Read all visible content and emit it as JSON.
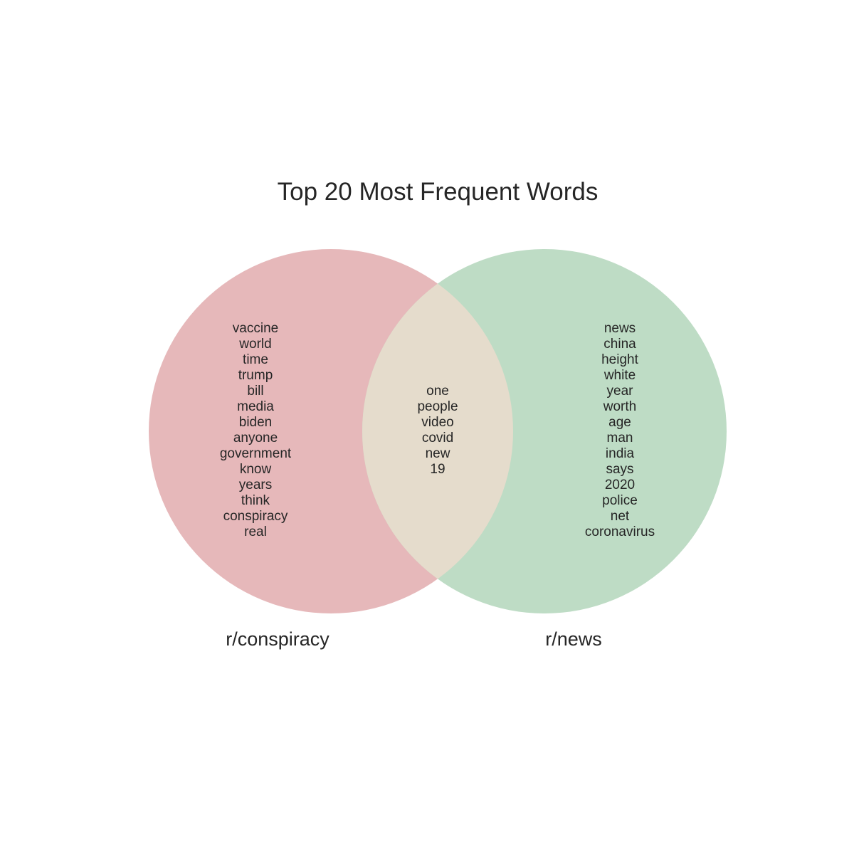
{
  "title": "Top 20 Most Frequent Words",
  "colors": {
    "left_set": "#e6b8ba",
    "right_set": "#bedcc5",
    "overlap": "#e5dccc",
    "text": "#262626",
    "background": "#ffffff"
  },
  "sets": {
    "left": {
      "label": "r/conspiracy",
      "words": [
        "vaccine",
        "world",
        "time",
        "trump",
        "bill",
        "media",
        "biden",
        "anyone",
        "government",
        "know",
        "years",
        "think",
        "conspiracy",
        "real"
      ]
    },
    "right": {
      "label": "r/news",
      "words": [
        "news",
        "china",
        "height",
        "white",
        "year",
        "worth",
        "age",
        "man",
        "india",
        "says",
        "2020",
        "police",
        "net",
        "coronavirus"
      ]
    },
    "intersection": {
      "words": [
        "one",
        "people",
        "video",
        "covid",
        "new",
        "19"
      ]
    }
  }
}
